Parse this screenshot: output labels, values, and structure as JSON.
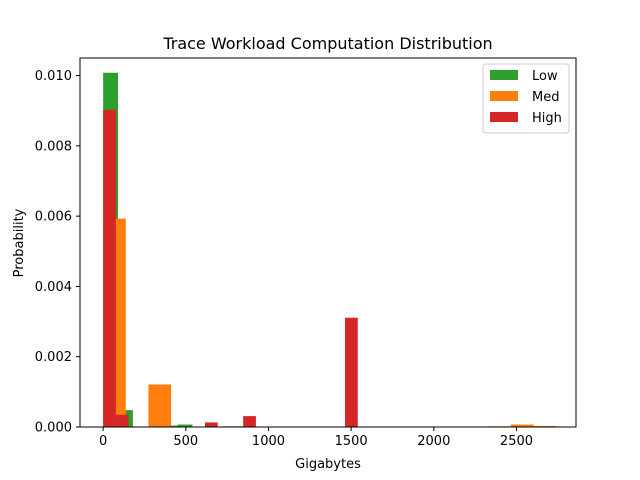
{
  "chart_data": {
    "type": "bar",
    "title": "Trace Workload Computation Distribution",
    "xlabel": "Gigabytes",
    "ylabel": "Probability",
    "xlim": [
      -140,
      2860
    ],
    "ylim": [
      0,
      0.0105
    ],
    "xticks": [
      0,
      500,
      1000,
      1500,
      2000,
      2500
    ],
    "xtick_labels": [
      "0",
      "500",
      "1000",
      "1500",
      "2000",
      "2500"
    ],
    "yticks": [
      0,
      0.002,
      0.004,
      0.006,
      0.008,
      0.01
    ],
    "ytick_labels": [
      "0.000",
      "0.002",
      "0.004",
      "0.006",
      "0.008",
      "0.010"
    ],
    "legend_position": "top-right",
    "grid": false,
    "series": [
      {
        "name": "Low",
        "color": "#2ca02c",
        "bins": [
          {
            "x0": 0,
            "x1": 90,
            "value": 0.01008
          },
          {
            "x0": 90,
            "x1": 180,
            "value": 0.00048
          },
          {
            "x0": 360,
            "x1": 450,
            "value": 4e-05
          },
          {
            "x0": 450,
            "x1": 540,
            "value": 7e-05
          },
          {
            "x0": 720,
            "x1": 810,
            "value": 2e-05
          },
          {
            "x0": 810,
            "x1": 900,
            "value": 2e-05
          }
        ]
      },
      {
        "name": "Med",
        "color": "#ff7f0e",
        "bins": [
          {
            "x0": 0,
            "x1": 137,
            "value": 0.00593
          },
          {
            "x0": 137,
            "x1": 274,
            "value": 1e-05
          },
          {
            "x0": 274,
            "x1": 411,
            "value": 0.00121
          },
          {
            "x0": 2329,
            "x1": 2466,
            "value": 2e-05
          },
          {
            "x0": 2466,
            "x1": 2603,
            "value": 7e-05
          },
          {
            "x0": 2603,
            "x1": 2740,
            "value": 3e-05
          }
        ]
      },
      {
        "name": "High",
        "color": "#d62728",
        "bins": [
          {
            "x0": 0,
            "x1": 77,
            "value": 0.00903
          },
          {
            "x0": 77,
            "x1": 154,
            "value": 0.00035
          },
          {
            "x0": 616,
            "x1": 693,
            "value": 0.00013
          },
          {
            "x0": 847,
            "x1": 924,
            "value": 0.00031
          },
          {
            "x0": 1463,
            "x1": 1540,
            "value": 0.00311
          }
        ]
      }
    ]
  }
}
